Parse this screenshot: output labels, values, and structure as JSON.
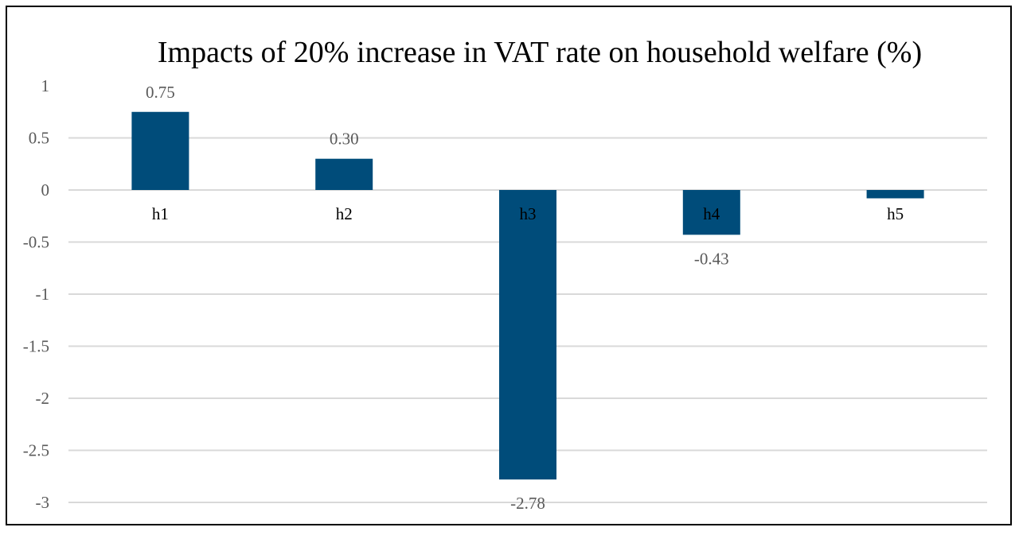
{
  "chart_data": {
    "type": "bar",
    "title": "Impacts of 20% increase in VAT rate on household welfare (%)",
    "categories": [
      "h1",
      "h2",
      "h3",
      "h4",
      "h5"
    ],
    "values": [
      0.75,
      0.3,
      -2.78,
      -0.43,
      -0.08
    ],
    "data_labels": [
      "0.75",
      "0.30",
      "-2.78",
      "-0.43",
      ""
    ],
    "yticks": [
      "1",
      "0.5",
      "0",
      "-0.5",
      "-1",
      "-1.5",
      "-2",
      "-2.5",
      "-3"
    ],
    "ylim": [
      -3,
      1
    ],
    "xlabel": "",
    "ylabel": "",
    "grid": true,
    "bar_color": "#004c7a"
  }
}
